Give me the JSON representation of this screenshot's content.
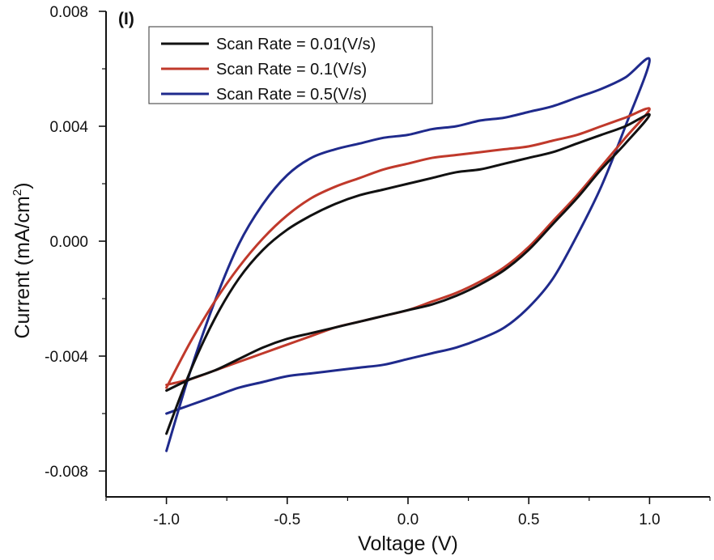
{
  "chart_data": {
    "type": "line",
    "panel_label": "(I)",
    "xlabel": "Voltage (V)",
    "ylabel_main": "Current (mA/cm",
    "ylabel_sup": "2",
    "ylabel_close": ")",
    "xlim": [
      -1.25,
      1.25
    ],
    "ylim": [
      -0.0089,
      0.008
    ],
    "x_ticks": [
      -1.0,
      -0.5,
      0.0,
      0.5,
      1.0
    ],
    "x_tick_labels": [
      "-1.0",
      "-0.5",
      "0.0",
      "0.5",
      "1.0"
    ],
    "y_ticks": [
      -0.008,
      -0.004,
      0.0,
      0.004,
      0.008
    ],
    "y_tick_labels": [
      "-0.008",
      "-0.004",
      "0.000",
      "0.004",
      "0.008"
    ],
    "legend_position": "top-left",
    "series": [
      {
        "name": "Scan Rate = 0.01(V/s)",
        "color": "#111111",
        "x": [
          -1.0,
          -0.9,
          -0.8,
          -0.7,
          -0.6,
          -0.5,
          -0.4,
          -0.3,
          -0.2,
          -0.1,
          0.0,
          0.1,
          0.2,
          0.3,
          0.4,
          0.5,
          0.6,
          0.7,
          0.8,
          0.9,
          1.0,
          0.9,
          0.8,
          0.7,
          0.6,
          0.5,
          0.4,
          0.3,
          0.2,
          0.1,
          0.0,
          -0.1,
          -0.2,
          -0.3,
          -0.4,
          -0.5,
          -0.6,
          -0.7,
          -0.8,
          -0.9,
          -1.0
        ],
        "y": [
          -0.0067,
          -0.0045,
          -0.0027,
          -0.0013,
          -0.0003,
          0.0004,
          0.0009,
          0.0013,
          0.0016,
          0.0018,
          0.002,
          0.0022,
          0.0024,
          0.0025,
          0.0027,
          0.0029,
          0.0031,
          0.0034,
          0.0037,
          0.004,
          0.0044,
          0.0034,
          0.0025,
          0.0015,
          0.0006,
          -0.0003,
          -0.001,
          -0.0015,
          -0.0019,
          -0.0022,
          -0.0024,
          -0.0026,
          -0.0028,
          -0.003,
          -0.0032,
          -0.0034,
          -0.0037,
          -0.0041,
          -0.0045,
          -0.0048,
          -0.0052
        ]
      },
      {
        "name": "Scan Rate = 0.1(V/s)",
        "color": "#c0392b",
        "x": [
          -1.0,
          -0.9,
          -0.8,
          -0.7,
          -0.6,
          -0.5,
          -0.4,
          -0.3,
          -0.2,
          -0.1,
          0.0,
          0.1,
          0.2,
          0.3,
          0.4,
          0.5,
          0.6,
          0.7,
          0.8,
          0.9,
          1.0,
          0.9,
          0.8,
          0.7,
          0.6,
          0.5,
          0.4,
          0.3,
          0.2,
          0.1,
          0.0,
          -0.1,
          -0.2,
          -0.3,
          -0.4,
          -0.5,
          -0.6,
          -0.7,
          -0.8,
          -0.9,
          -1.0
        ],
        "y": [
          -0.0051,
          -0.0035,
          -0.0021,
          -0.0009,
          0.0001,
          0.0009,
          0.0015,
          0.0019,
          0.0022,
          0.0025,
          0.0027,
          0.0029,
          0.003,
          0.0031,
          0.0032,
          0.0033,
          0.0035,
          0.0037,
          0.004,
          0.0043,
          0.0046,
          0.0036,
          0.0026,
          0.0016,
          0.0007,
          -0.0002,
          -0.0009,
          -0.0014,
          -0.0018,
          -0.0021,
          -0.0024,
          -0.0026,
          -0.0028,
          -0.003,
          -0.0033,
          -0.0036,
          -0.0039,
          -0.0042,
          -0.0045,
          -0.0048,
          -0.005
        ]
      },
      {
        "name": "Scan Rate = 0.5(V/s)",
        "color": "#1f2a8c",
        "x": [
          -1.0,
          -0.9,
          -0.8,
          -0.7,
          -0.6,
          -0.5,
          -0.4,
          -0.3,
          -0.2,
          -0.1,
          0.0,
          0.1,
          0.2,
          0.3,
          0.4,
          0.5,
          0.6,
          0.7,
          0.8,
          0.9,
          1.0,
          0.9,
          0.8,
          0.7,
          0.6,
          0.5,
          0.4,
          0.3,
          0.2,
          0.1,
          0.0,
          -0.1,
          -0.2,
          -0.3,
          -0.4,
          -0.5,
          -0.6,
          -0.7,
          -0.8,
          -0.9,
          -1.0
        ],
        "y": [
          -0.0073,
          -0.0045,
          -0.0021,
          -0.0001,
          0.0013,
          0.0023,
          0.0029,
          0.0032,
          0.0034,
          0.0036,
          0.0037,
          0.0039,
          0.004,
          0.0042,
          0.0043,
          0.0045,
          0.0047,
          0.005,
          0.0053,
          0.0057,
          0.0063,
          0.004,
          0.0019,
          0.0002,
          -0.0013,
          -0.0023,
          -0.003,
          -0.0034,
          -0.0037,
          -0.0039,
          -0.0041,
          -0.0043,
          -0.0044,
          -0.0045,
          -0.0046,
          -0.0047,
          -0.0049,
          -0.0051,
          -0.0054,
          -0.0057,
          -0.006
        ]
      }
    ]
  }
}
